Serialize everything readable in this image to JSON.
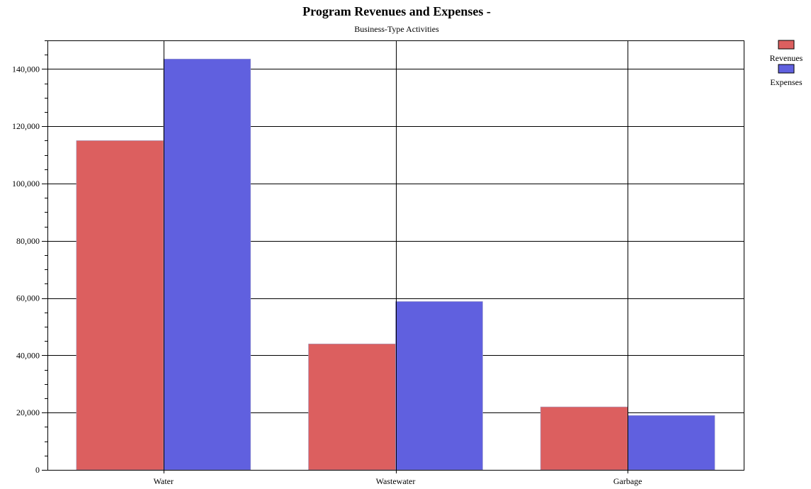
{
  "chart_data": {
    "type": "bar",
    "title": "Program Revenues and Expenses -",
    "subtitle": "Business-Type Activities",
    "categories": [
      "Water",
      "Wastewater",
      "Garbage"
    ],
    "series": [
      {
        "name": "Revenues",
        "values": [
          115000,
          44000,
          22000
        ],
        "color": "#dc5f5f"
      },
      {
        "name": "Expenses",
        "values": [
          143500,
          58800,
          19000
        ],
        "color": "#6060df"
      }
    ],
    "ylim": [
      0,
      150000
    ],
    "yticks": [
      0,
      20000,
      40000,
      60000,
      80000,
      100000,
      120000,
      140000
    ],
    "ytick_labels": [
      "0",
      "20,000",
      "40,000",
      "60,000",
      "80,000",
      "100,000",
      "120,000",
      "140,000"
    ],
    "grid": true,
    "legend_position": "top-right"
  }
}
